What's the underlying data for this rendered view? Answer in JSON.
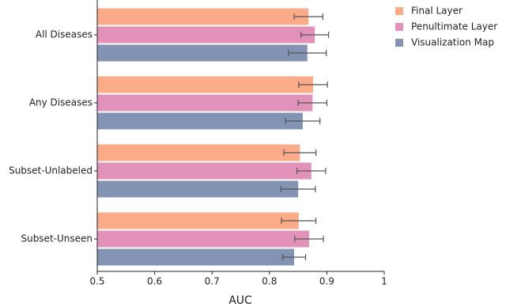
{
  "chart_data": {
    "type": "barh",
    "categories": [
      "All Diseases",
      "Any Diseases",
      "Subset-Unlabeled",
      "Subset-Unseen"
    ],
    "series": [
      {
        "name": "Final Layer",
        "color": "#fbab88",
        "values": [
          0.868,
          0.876,
          0.853,
          0.851
        ],
        "errors": [
          0.025,
          0.025,
          0.028,
          0.03
        ]
      },
      {
        "name": "Penultimate Layer",
        "color": "#e292b8",
        "values": [
          0.879,
          0.875,
          0.873,
          0.869
        ],
        "errors": [
          0.024,
          0.025,
          0.025,
          0.025
        ]
      },
      {
        "name": "Visualization Map",
        "color": "#8393b3",
        "values": [
          0.866,
          0.858,
          0.85,
          0.843
        ],
        "errors": [
          0.033,
          0.03,
          0.03,
          0.02
        ]
      }
    ],
    "x_label": "AUC",
    "xlim": [
      0.5,
      1
    ],
    "xticks": [
      0.5,
      0.6,
      0.7,
      0.8,
      0.9,
      1
    ],
    "legend": "upper right"
  }
}
